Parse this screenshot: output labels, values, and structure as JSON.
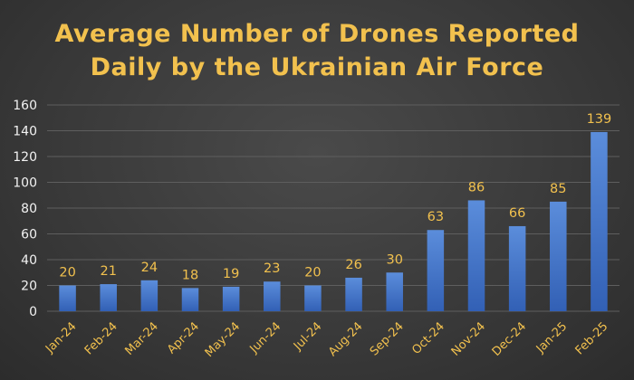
{
  "chart_data": {
    "type": "bar",
    "title_lines": [
      "Average Number of Drones Reported",
      "Daily by the Ukrainian Air Force"
    ],
    "categories": [
      "Jan-24",
      "Feb-24",
      "Mar-24",
      "Apr-24",
      "May-24",
      "Jun-24",
      "Jul-24",
      "Aug-24",
      "Sep-24",
      "Oct-24",
      "Nov-24",
      "Dec-24",
      "Jan-25",
      "Feb-25"
    ],
    "values": [
      20,
      21,
      24,
      18,
      19,
      23,
      20,
      26,
      30,
      63,
      86,
      66,
      85,
      139
    ],
    "ylim": [
      0,
      160
    ],
    "yticks": [
      "0",
      "20",
      "40",
      "60",
      "80",
      "100",
      "120",
      "140",
      "160"
    ],
    "xlabel": "",
    "ylabel": "",
    "grid": true,
    "legend": "none",
    "colors": {
      "bar_top": "#5b8ddb",
      "bar_bottom": "#3260b5",
      "title": "#f2c14e",
      "data_label": "#f2c14e",
      "x_tick": "#f2c14e",
      "y_tick": "#f2f2f2"
    }
  }
}
